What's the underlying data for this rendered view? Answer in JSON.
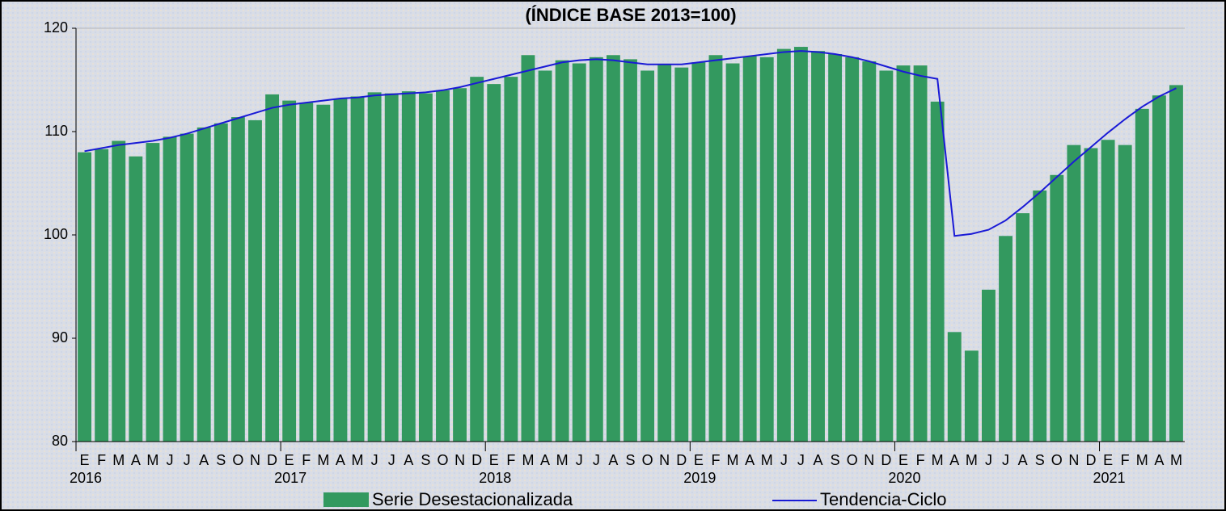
{
  "chart_data": {
    "type": "bar",
    "title": "(ÍNDICE BASE 2013=100)",
    "categories": [
      "E",
      "F",
      "M",
      "A",
      "M",
      "J",
      "J",
      "A",
      "S",
      "O",
      "N",
      "D",
      "E",
      "F",
      "M",
      "A",
      "M",
      "J",
      "J",
      "A",
      "S",
      "O",
      "N",
      "D",
      "E",
      "F",
      "M",
      "A",
      "M",
      "J",
      "J",
      "A",
      "S",
      "O",
      "N",
      "D",
      "E",
      "F",
      "M",
      "A",
      "M",
      "J",
      "J",
      "A",
      "S",
      "O",
      "N",
      "D",
      "E",
      "F",
      "M",
      "A",
      "M",
      "J",
      "J",
      "A",
      "S",
      "O",
      "N",
      "D",
      "E",
      "F",
      "M",
      "A",
      "M"
    ],
    "years": [
      "2016",
      "2017",
      "2018",
      "2019",
      "2020",
      "2021"
    ],
    "series": [
      {
        "name": "Serie Desestacionalizada",
        "type": "bar",
        "color": "#33995f",
        "values": [
          108.0,
          108.3,
          109.1,
          107.6,
          108.9,
          109.5,
          109.8,
          110.4,
          110.8,
          111.4,
          111.1,
          113.6,
          113.0,
          112.8,
          112.6,
          113.2,
          113.4,
          113.8,
          113.7,
          113.9,
          113.7,
          114.0,
          114.2,
          115.3,
          114.6,
          115.3,
          117.4,
          115.9,
          116.9,
          116.6,
          117.2,
          117.4,
          117.0,
          115.9,
          116.5,
          116.2,
          116.7,
          117.4,
          116.6,
          117.3,
          117.2,
          118.0,
          118.2,
          117.8,
          117.5,
          117.2,
          116.8,
          115.9,
          116.4,
          116.4,
          112.9,
          90.6,
          88.8,
          94.7,
          99.9,
          102.1,
          104.3,
          105.8,
          108.7,
          108.4,
          109.2,
          108.7,
          112.2,
          113.5,
          114.5
        ]
      },
      {
        "name": "Tendencia-Ciclo",
        "type": "line",
        "color": "#1a1ad6",
        "values": [
          108.1,
          108.4,
          108.7,
          108.9,
          109.1,
          109.4,
          109.8,
          110.3,
          110.8,
          111.3,
          111.8,
          112.3,
          112.6,
          112.8,
          113.0,
          113.2,
          113.3,
          113.5,
          113.6,
          113.7,
          113.8,
          114.0,
          114.3,
          114.7,
          115.1,
          115.5,
          115.9,
          116.3,
          116.7,
          116.9,
          117.0,
          116.9,
          116.7,
          116.5,
          116.5,
          116.5,
          116.7,
          116.9,
          117.1,
          117.3,
          117.5,
          117.7,
          117.8,
          117.7,
          117.5,
          117.2,
          116.8,
          116.3,
          115.8,
          115.4,
          115.1,
          99.9,
          100.1,
          100.5,
          101.4,
          102.7,
          104.1,
          105.6,
          107.1,
          108.5,
          109.9,
          111.2,
          112.4,
          113.4,
          114.2
        ]
      }
    ],
    "ylim": [
      80,
      120
    ],
    "yticks": [
      80,
      90,
      100,
      110,
      120
    ],
    "grid": false
  }
}
